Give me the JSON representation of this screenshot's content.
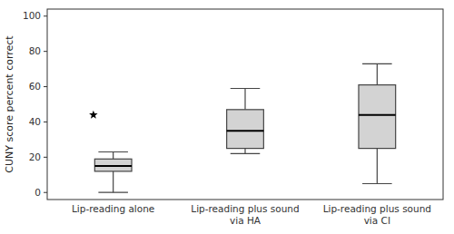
{
  "chart_data": {
    "type": "box",
    "categories": [
      "Lip-reading alone",
      "Lip-reading plus sound\nvia HA",
      "Lip-reading plus sound\nvia CI"
    ],
    "whisker_low": [
      0,
      22,
      5
    ],
    "q1": [
      12,
      25,
      25
    ],
    "median": [
      15,
      35,
      44
    ],
    "q3": [
      19,
      47,
      61
    ],
    "whisker_high": [
      23,
      59,
      73
    ],
    "outliers": [
      [
        44
      ],
      [],
      []
    ],
    "marker": "star",
    "color": "#d3d3d3",
    "ylabel": "CUNY score percent correct",
    "ylim": [
      -4,
      104
    ],
    "yticks": [
      0,
      20,
      40,
      60,
      80,
      100
    ],
    "grid": false
  }
}
